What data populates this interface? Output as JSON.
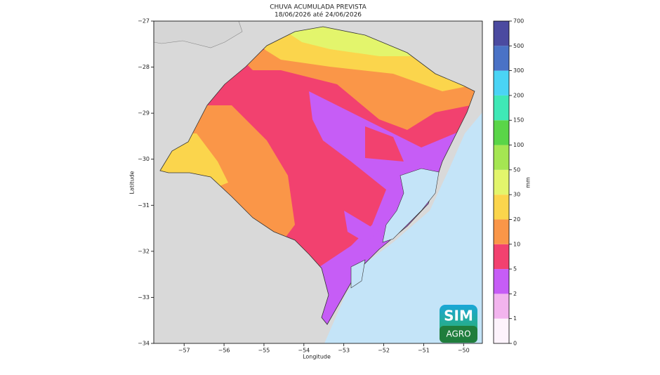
{
  "map": {
    "title": "CHUVA ACUMULADA PREVISTA",
    "subtitle": "18/06/2026 até 24/06/2026",
    "x_label": "Longitude",
    "y_label": "Latitude",
    "xlim": [
      -57.76,
      -49.53
    ],
    "ylim": [
      -34,
      -27
    ],
    "xticks": [
      {
        "value": -57,
        "label": "−57"
      },
      {
        "value": -56,
        "label": "−56"
      },
      {
        "value": -55,
        "label": "−55"
      },
      {
        "value": -54,
        "label": "−54"
      },
      {
        "value": -53,
        "label": "−53"
      },
      {
        "value": -52,
        "label": "−52"
      },
      {
        "value": -51,
        "label": "−51"
      },
      {
        "value": -50,
        "label": "−50"
      }
    ],
    "yticks": [
      {
        "value": -34,
        "label": "−34"
      },
      {
        "value": -33,
        "label": "−33"
      },
      {
        "value": -32,
        "label": "−32"
      },
      {
        "value": -31,
        "label": "−31"
      },
      {
        "value": -30,
        "label": "−30"
      },
      {
        "value": -29,
        "label": "−29"
      },
      {
        "value": -28,
        "label": "−28"
      },
      {
        "value": -27,
        "label": "−27"
      }
    ],
    "colorbar": {
      "label": "mm",
      "ticks": [
        0,
        1,
        2,
        5,
        10,
        20,
        30,
        50,
        100,
        150,
        200,
        300,
        500,
        700
      ],
      "colors": [
        "#fdf3fc",
        "#f2b4ee",
        "#c65df6",
        "#f2416f",
        "#fa9648",
        "#fbd54c",
        "#e3f56c",
        "#a5e652",
        "#5ad548",
        "#3fe8b6",
        "#4ad4f5",
        "#4a72c6",
        "#4b4aa0"
      ]
    },
    "logo": {
      "top": "SIM",
      "bottom": "AGRO"
    }
  }
}
